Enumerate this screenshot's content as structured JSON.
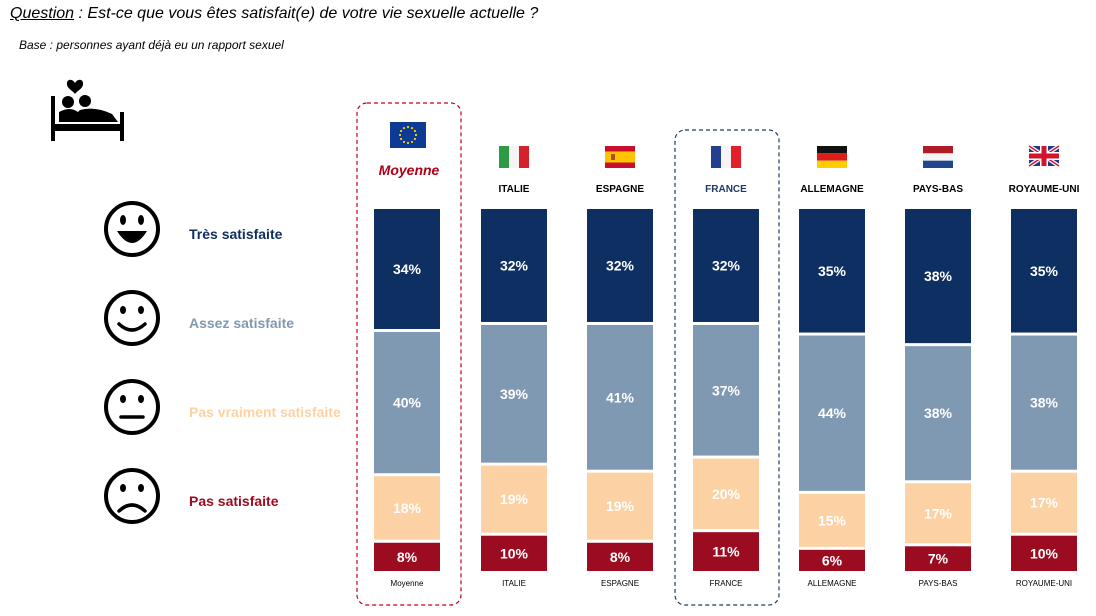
{
  "question": {
    "label": "Question",
    "separator": " : ",
    "text": "Est-ce que vous êtes satisfait(e) de votre vie sexuelle actuelle ?"
  },
  "base": "Base :  personnes ayant déjà eu un rapport sexuel",
  "icons": {
    "header": "couple-in-bed-icon",
    "levels": [
      "very-happy-face-icon",
      "smiling-face-icon",
      "neutral-face-icon",
      "sad-face-icon"
    ]
  },
  "colors": {
    "tres_satisfaite": "#0e2f61",
    "assez_satisfaite": "#8099b2",
    "pas_vraiment_satisfaite": "#fcd1a3",
    "pas_satisfaite": "#9c0c21",
    "highlight_average": "#c0001a",
    "highlight_france": "#1f3b63",
    "average_label": "#b00018"
  },
  "chart_data": {
    "type": "bar",
    "stacked": true,
    "normalized": true,
    "unit": "%",
    "categories": [
      "Moyenne",
      "ITALIE",
      "ESPAGNE",
      "FRANCE",
      "ALLEMAGNE",
      "PAYS-BAS",
      "ROYAUME-UNI"
    ],
    "category_headers": [
      "Moyenne",
      "ITALIE",
      "ESPAGNE",
      "FRANCE",
      "ALLEMAGNE",
      "PAYS-BAS",
      "ROYAUME-UNI"
    ],
    "category_icons": [
      "eu-flag-icon",
      "italy-flag-icon",
      "spain-flag-icon",
      "france-flag-icon",
      "germany-flag-icon",
      "netherlands-flag-icon",
      "uk-flag-icon"
    ],
    "highlighted": [
      "Moyenne",
      "FRANCE"
    ],
    "series": [
      {
        "name": "Très satisfaite",
        "values": [
          34,
          32,
          32,
          32,
          35,
          38,
          35
        ]
      },
      {
        "name": "Assez satisfaite",
        "values": [
          40,
          39,
          41,
          37,
          44,
          38,
          38
        ]
      },
      {
        "name": "Pas vraiment satisfaite",
        "values": [
          18,
          19,
          19,
          20,
          15,
          17,
          17
        ]
      },
      {
        "name": "Pas satisfaite",
        "values": [
          8,
          10,
          8,
          11,
          6,
          7,
          10
        ]
      }
    ],
    "legend_position": "left",
    "grid": false
  }
}
